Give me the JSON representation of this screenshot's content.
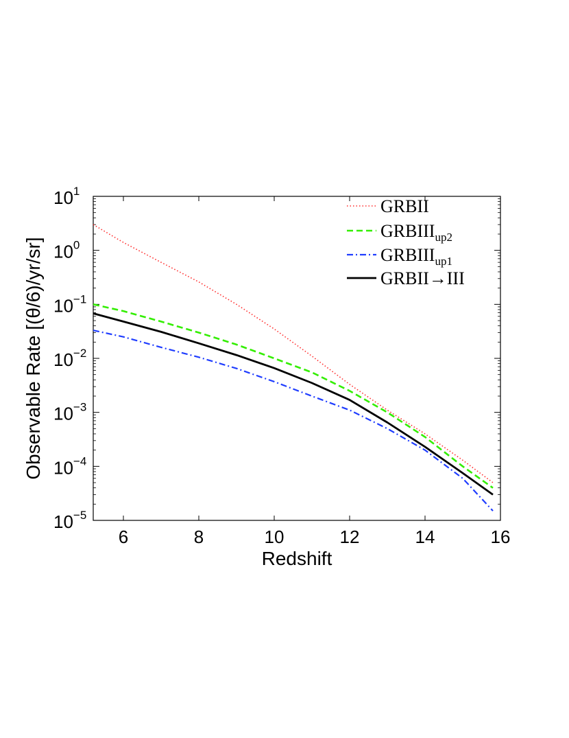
{
  "chart_data": {
    "type": "line",
    "title": "",
    "xlabel": "Redshift",
    "ylabel": "Observable Rate [(θ/6)/yr/sr]",
    "xlim": [
      5.2,
      16
    ],
    "ylim": [
      1e-05,
      10
    ],
    "yscale": "log",
    "grid": false,
    "legend_position": "top-right",
    "x_ticks": [
      "6",
      "8",
      "10",
      "12",
      "14",
      "16"
    ],
    "y_ticks": [
      {
        "base": "10",
        "exp": "1"
      },
      {
        "base": "10",
        "exp": "0"
      },
      {
        "base": "10",
        "exp": "−1"
      },
      {
        "base": "10",
        "exp": "−2"
      },
      {
        "base": "10",
        "exp": "−3"
      },
      {
        "base": "10",
        "exp": "−4"
      },
      {
        "base": "10",
        "exp": "−5"
      }
    ],
    "series": [
      {
        "name": "GRBII",
        "legend_main": "GRBII",
        "legend_sub": "",
        "color": "#ff2a2a",
        "style": "dotted",
        "x": [
          5.2,
          6,
          7,
          8,
          9,
          10,
          11,
          12,
          13,
          14,
          15,
          15.8
        ],
        "y": [
          3.0,
          1.4,
          0.6,
          0.26,
          0.1,
          0.035,
          0.011,
          0.0033,
          0.0011,
          0.0004,
          0.00013,
          5e-05
        ]
      },
      {
        "name": "GRBIII_up2",
        "legend_main": "GRBIII",
        "legend_sub": "up2",
        "color": "#33ee00",
        "style": "dashed",
        "x": [
          5.2,
          6,
          7,
          8,
          9,
          10,
          11,
          12,
          13,
          14,
          15,
          15.8
        ],
        "y": [
          0.1,
          0.075,
          0.048,
          0.03,
          0.018,
          0.01,
          0.0055,
          0.0025,
          0.001,
          0.00035,
          0.0001,
          4e-05
        ]
      },
      {
        "name": "GRBIII_up1",
        "legend_main": "GRBIII",
        "legend_sub": "up1",
        "color": "#1f3dff",
        "style": "dashdot",
        "x": [
          5.2,
          6,
          7,
          8,
          9,
          10,
          11,
          12,
          13,
          14,
          15,
          15.8
        ],
        "y": [
          0.033,
          0.025,
          0.016,
          0.0105,
          0.0065,
          0.0037,
          0.002,
          0.0011,
          0.0005,
          0.0002,
          6e-05,
          1.5e-05
        ]
      },
      {
        "name": "GRBII→III",
        "legend_main": "GRBII→III",
        "legend_sub": "",
        "color": "#000000",
        "style": "solid",
        "x": [
          5.2,
          6,
          7,
          8,
          9,
          10,
          11,
          12,
          13,
          14,
          15,
          15.8
        ],
        "y": [
          0.068,
          0.048,
          0.031,
          0.019,
          0.0115,
          0.0066,
          0.0035,
          0.0017,
          0.00065,
          0.00023,
          7.5e-05,
          3e-05
        ]
      }
    ]
  }
}
